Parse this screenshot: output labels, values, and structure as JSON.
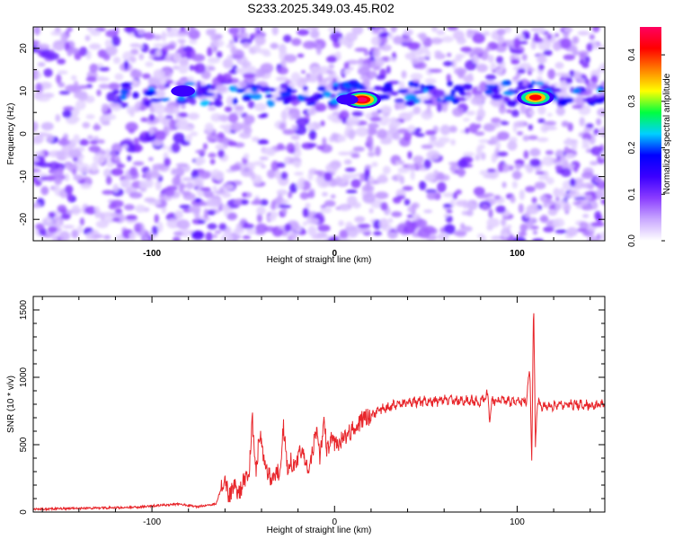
{
  "figure": {
    "title": "S233.2025.349.03.45.R02"
  },
  "chart_data": [
    {
      "type": "heatmap",
      "xlabel": "Height of straight line (km)",
      "ylabel": "Frequency (Hz)",
      "xlim": [
        -165,
        148
      ],
      "ylim": [
        -25,
        25
      ],
      "x_ticks": [
        -100,
        0,
        100
      ],
      "y_ticks": [
        -20,
        -10,
        0,
        10,
        20
      ],
      "colorbar": {
        "label": "Normalized spectral amplitude",
        "range": [
          0.0,
          0.46
        ],
        "ticks": [
          0.0,
          0.1,
          0.2,
          0.3,
          0.4
        ],
        "colormap": [
          "#ffffff",
          "#c9a8ff",
          "#8a3cff",
          "#3b00ff",
          "#0000ff",
          "#00d0ff",
          "#00ff40",
          "#ffff00",
          "#ff8000",
          "#ff0000",
          "#ff0060"
        ]
      },
      "hot_spots": [
        {
          "x": 15,
          "y": 8,
          "amp": 0.46
        },
        {
          "x": 110,
          "y": 8.5,
          "amp": 0.44
        },
        {
          "x": -83,
          "y": 10,
          "amp": 0.2
        },
        {
          "x": 7,
          "y": 8,
          "amp": 0.16
        },
        {
          "x": 70,
          "y": 10,
          "amp": 0.12
        },
        {
          "x": 100,
          "y": 9.5,
          "amp": 0.12
        },
        {
          "x": 120,
          "y": 9,
          "amp": 0.1
        },
        {
          "x": -160,
          "y": 21,
          "amp": 0.1
        },
        {
          "x": -150,
          "y": -20,
          "amp": 0.09
        }
      ]
    },
    {
      "type": "line",
      "xlabel": "Height of straight line (km)",
      "ylabel": "SNR (10 * v/v)",
      "xlim": [
        -165,
        148
      ],
      "ylim": [
        0,
        1600
      ],
      "x_ticks": [
        -100,
        0,
        100
      ],
      "y_ticks": [
        0,
        500,
        1000,
        1500
      ],
      "series": [
        {
          "color": "#e8262b",
          "x": [
            -165,
            -150,
            -130,
            -110,
            -95,
            -85,
            -75,
            -65,
            -60,
            -58,
            -55,
            -52,
            -50,
            -47,
            -45,
            -43,
            -41,
            -39,
            -37,
            -35,
            -32,
            -30,
            -28,
            -26,
            -24,
            -22,
            -20,
            -18,
            -16,
            -14,
            -12,
            -10,
            -8,
            -6,
            -4,
            -2,
            0,
            3,
            6,
            10,
            15,
            20,
            25,
            30,
            40,
            50,
            60,
            70,
            80,
            84,
            85,
            86,
            90,
            95,
            100,
            105,
            107,
            108,
            109,
            110,
            111,
            113,
            120,
            130,
            140,
            148
          ],
          "y": [
            20,
            25,
            30,
            35,
            50,
            60,
            40,
            60,
            260,
            120,
            200,
            140,
            220,
            260,
            680,
            300,
            600,
            380,
            320,
            240,
            300,
            300,
            650,
            320,
            400,
            310,
            380,
            480,
            350,
            300,
            460,
            600,
            400,
            680,
            450,
            560,
            500,
            520,
            560,
            620,
            680,
            720,
            760,
            780,
            810,
            820,
            830,
            830,
            820,
            880,
            650,
            820,
            830,
            820,
            820,
            820,
            1050,
            380,
            1560,
            500,
            820,
            780,
            790,
            800,
            790,
            800
          ]
        }
      ]
    }
  ]
}
